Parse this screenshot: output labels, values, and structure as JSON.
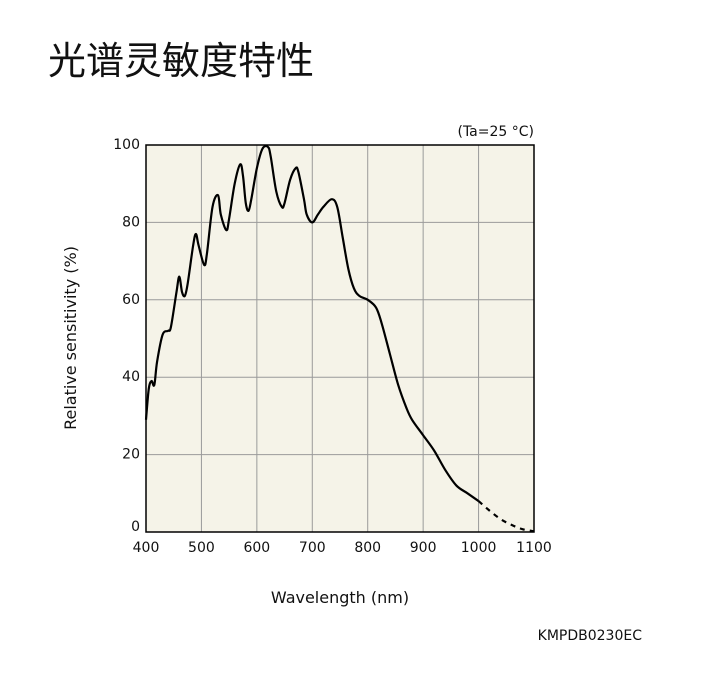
{
  "title": "光谱灵敏度特性",
  "chart_data": {
    "type": "line",
    "condition": "(Ta=25 °C)",
    "x_label": "Wavelength (nm)",
    "y_label": "Relative sensitivity (%)",
    "code": "KMPDB0230EC",
    "xlim": [
      400,
      1100
    ],
    "xticks": [
      400,
      500,
      600,
      700,
      800,
      900,
      1000,
      1100
    ],
    "ylim": [
      0,
      100
    ],
    "yticks": [
      0,
      20,
      40,
      60,
      80,
      100
    ],
    "grid": true,
    "background": "#f5f3e8",
    "series": [
      {
        "color": "#000000",
        "style": "solid",
        "x": [
          400,
          405,
          410,
          415,
          420,
          430,
          440,
          445,
          455,
          460,
          465,
          470,
          475,
          485,
          490,
          495,
          505,
          510,
          520,
          530,
          535,
          545,
          550,
          560,
          570,
          575,
          580,
          585,
          590,
          600,
          610,
          620,
          625,
          635,
          645,
          650,
          660,
          670,
          675,
          685,
          690,
          700,
          710,
          720,
          735,
          745,
          755,
          765,
          775,
          785,
          800,
          815,
          825,
          840,
          855,
          870,
          880,
          900,
          920,
          940,
          960,
          980,
          1000
        ],
        "values": [
          29,
          37,
          39,
          38,
          44,
          51,
          52,
          53,
          62,
          66,
          62,
          61,
          64,
          74,
          77,
          74,
          69,
          72,
          84,
          87,
          82,
          78,
          81,
          90,
          95,
          92,
          85,
          83,
          86,
          94,
          99,
          99.5,
          97,
          88,
          84,
          85,
          91,
          94,
          93,
          86,
          82,
          80,
          82,
          84,
          86,
          84,
          76,
          68,
          63,
          61,
          60,
          58,
          54,
          46,
          38,
          32,
          29,
          25,
          21,
          16,
          12,
          10,
          8
        ]
      },
      {
        "color": "#000000",
        "style": "dashed",
        "x": [
          1000,
          1020,
          1040,
          1060,
          1080,
          1100
        ],
        "values": [
          8,
          5.5,
          3.3,
          1.8,
          0.7,
          0.2
        ]
      }
    ]
  }
}
